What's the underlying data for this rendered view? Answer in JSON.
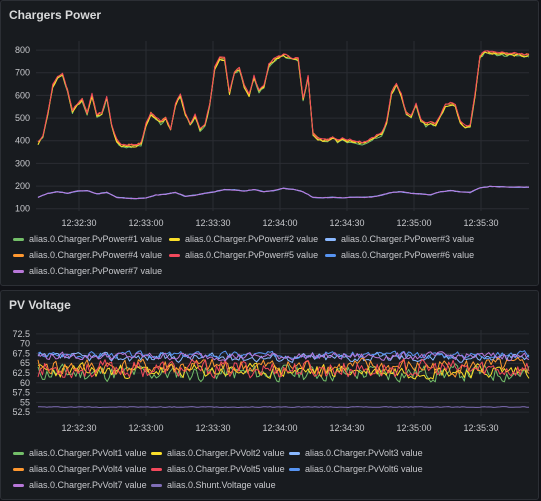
{
  "chart_data": [
    {
      "type": "line",
      "title": "Chargers Power",
      "x_ticks": [
        "12:32:30",
        "12:33:00",
        "12:33:30",
        "12:34:00",
        "12:34:30",
        "12:35:00",
        "12:35:30"
      ],
      "y_ticks": [
        100,
        200,
        300,
        400,
        500,
        600,
        700,
        800
      ],
      "ylim": [
        90,
        840
      ],
      "grid": true,
      "legend_position": "bottom",
      "series": [
        {
          "name": "alias.0.Charger.PvPower#1 value",
          "color": "#73bf69"
        },
        {
          "name": "alias.0.Charger.PvPower#2 value",
          "color": "#fade2a"
        },
        {
          "name": "alias.0.Charger.PvPower#3 value",
          "color": "#8ab8ff"
        },
        {
          "name": "alias.0.Charger.PvPower#4 value",
          "color": "#ff9830"
        },
        {
          "name": "alias.0.Charger.PvPower#5 value",
          "color": "#f2495c"
        },
        {
          "name": "alias.0.Charger.PvPower#6 value",
          "color": "#5794f2"
        },
        {
          "name": "alias.0.Charger.PvPower#7 value",
          "color": "#b877d9"
        }
      ],
      "main_profile": [
        [
          0,
          390
        ],
        [
          2,
          420
        ],
        [
          4,
          520
        ],
        [
          6,
          640
        ],
        [
          8,
          680
        ],
        [
          10,
          690
        ],
        [
          12,
          620
        ],
        [
          14,
          530
        ],
        [
          16,
          560
        ],
        [
          18,
          580
        ],
        [
          20,
          520
        ],
        [
          22,
          600
        ],
        [
          24,
          510
        ],
        [
          26,
          520
        ],
        [
          28,
          590
        ],
        [
          30,
          470
        ],
        [
          32,
          400
        ],
        [
          34,
          380
        ],
        [
          36,
          378
        ],
        [
          38,
          378
        ],
        [
          40,
          380
        ],
        [
          42,
          385
        ],
        [
          44,
          470
        ],
        [
          46,
          520
        ],
        [
          48,
          500
        ],
        [
          50,
          480
        ],
        [
          52,
          500
        ],
        [
          54,
          450
        ],
        [
          56,
          560
        ],
        [
          58,
          600
        ],
        [
          60,
          520
        ],
        [
          62,
          470
        ],
        [
          64,
          510
        ],
        [
          66,
          450
        ],
        [
          68,
          470
        ],
        [
          70,
          560
        ],
        [
          72,
          720
        ],
        [
          74,
          760
        ],
        [
          76,
          760
        ],
        [
          78,
          610
        ],
        [
          80,
          700
        ],
        [
          82,
          720
        ],
        [
          84,
          640
        ],
        [
          86,
          600
        ],
        [
          88,
          680
        ],
        [
          90,
          620
        ],
        [
          92,
          640
        ],
        [
          94,
          730
        ],
        [
          96,
          755
        ],
        [
          98,
          770
        ],
        [
          100,
          775
        ],
        [
          102,
          770
        ],
        [
          104,
          760
        ],
        [
          106,
          760
        ],
        [
          108,
          580
        ],
        [
          110,
          680
        ],
        [
          112,
          430
        ],
        [
          114,
          410
        ],
        [
          116,
          400
        ],
        [
          118,
          400
        ],
        [
          120,
          415
        ],
        [
          122,
          400
        ],
        [
          124,
          410
        ],
        [
          126,
          400
        ],
        [
          128,
          400
        ],
        [
          130,
          395
        ],
        [
          132,
          390
        ],
        [
          134,
          395
        ],
        [
          136,
          410
        ],
        [
          138,
          420
        ],
        [
          140,
          430
        ],
        [
          142,
          480
        ],
        [
          144,
          610
        ],
        [
          146,
          650
        ],
        [
          148,
          600
        ],
        [
          150,
          520
        ],
        [
          152,
          510
        ],
        [
          154,
          560
        ],
        [
          156,
          490
        ],
        [
          158,
          470
        ],
        [
          160,
          480
        ],
        [
          162,
          470
        ],
        [
          164,
          510
        ],
        [
          166,
          555
        ],
        [
          168,
          560
        ],
        [
          170,
          555
        ],
        [
          172,
          480
        ],
        [
          174,
          460
        ],
        [
          176,
          460
        ],
        [
          178,
          600
        ],
        [
          180,
          770
        ],
        [
          182,
          790
        ],
        [
          184,
          790
        ],
        [
          186,
          785
        ],
        [
          188,
          785
        ],
        [
          190,
          782
        ],
        [
          192,
          782
        ],
        [
          194,
          780
        ],
        [
          196,
          780
        ],
        [
          198,
          778
        ],
        [
          200,
          778
        ]
      ],
      "low_profile": [
        [
          0,
          150
        ],
        [
          4,
          168
        ],
        [
          8,
          175
        ],
        [
          12,
          168
        ],
        [
          16,
          178
        ],
        [
          20,
          180
        ],
        [
          24,
          165
        ],
        [
          28,
          172
        ],
        [
          32,
          150
        ],
        [
          36,
          146
        ],
        [
          40,
          145
        ],
        [
          44,
          148
        ],
        [
          48,
          160
        ],
        [
          52,
          164
        ],
        [
          56,
          172
        ],
        [
          60,
          155
        ],
        [
          64,
          160
        ],
        [
          68,
          168
        ],
        [
          72,
          175
        ],
        [
          76,
          185
        ],
        [
          80,
          183
        ],
        [
          84,
          178
        ],
        [
          88,
          185
        ],
        [
          92,
          175
        ],
        [
          96,
          180
        ],
        [
          100,
          190
        ],
        [
          104,
          185
        ],
        [
          108,
          175
        ],
        [
          112,
          150
        ],
        [
          116,
          148
        ],
        [
          120,
          150
        ],
        [
          124,
          148
        ],
        [
          128,
          152
        ],
        [
          132,
          150
        ],
        [
          136,
          152
        ],
        [
          140,
          160
        ],
        [
          144,
          172
        ],
        [
          148,
          175
        ],
        [
          152,
          168
        ],
        [
          156,
          165
        ],
        [
          160,
          162
        ],
        [
          164,
          175
        ],
        [
          168,
          180
        ],
        [
          172,
          175
        ],
        [
          176,
          172
        ],
        [
          180,
          192
        ],
        [
          184,
          198
        ],
        [
          190,
          196
        ],
        [
          200,
          195
        ]
      ]
    },
    {
      "type": "line",
      "title": "PV Voltage",
      "x_ticks": [
        "12:32:30",
        "12:33:00",
        "12:33:30",
        "12:34:00",
        "12:34:30",
        "12:35:00",
        "12:35:30"
      ],
      "y_ticks": [
        "52.5",
        "55",
        "57.5",
        "60",
        "62.5",
        "65",
        "67.5",
        "70",
        "72.5"
      ],
      "y_tick_values": [
        52.5,
        55,
        57.5,
        60,
        62.5,
        65,
        67.5,
        70,
        72.5
      ],
      "ylim": [
        51.5,
        73.5
      ],
      "grid": true,
      "legend_position": "bottom",
      "series": [
        {
          "name": "alias.0.Charger.PvVolt1 value",
          "color": "#73bf69",
          "base": 62.5,
          "amp": 3.0,
          "seed": 11
        },
        {
          "name": "alias.0.Charger.PvVolt2 value",
          "color": "#fade2a",
          "base": 63.0,
          "amp": 2.5,
          "seed": 23
        },
        {
          "name": "alias.0.Charger.PvVolt3 value",
          "color": "#8ab8ff",
          "base": 66.5,
          "amp": 1.6,
          "seed": 37
        },
        {
          "name": "alias.0.Charger.PvVolt4 value",
          "color": "#ff9830",
          "base": 64.0,
          "amp": 3.0,
          "seed": 41
        },
        {
          "name": "alias.0.Charger.PvVolt5 value",
          "color": "#f2495c",
          "base": 63.5,
          "amp": 3.2,
          "seed": 53
        },
        {
          "name": "alias.0.Charger.PvVolt6 value",
          "color": "#5794f2",
          "base": 67.2,
          "amp": 1.2,
          "seed": 67
        },
        {
          "name": "alias.0.Charger.PvVolt7 value",
          "color": "#b877d9",
          "base": 66.8,
          "amp": 1.4,
          "seed": 79
        },
        {
          "name": "alias.0.Shunt.Voltage value",
          "color": "#806eb7",
          "base": 53.8,
          "amp": 0.15,
          "seed": 97
        }
      ]
    }
  ]
}
